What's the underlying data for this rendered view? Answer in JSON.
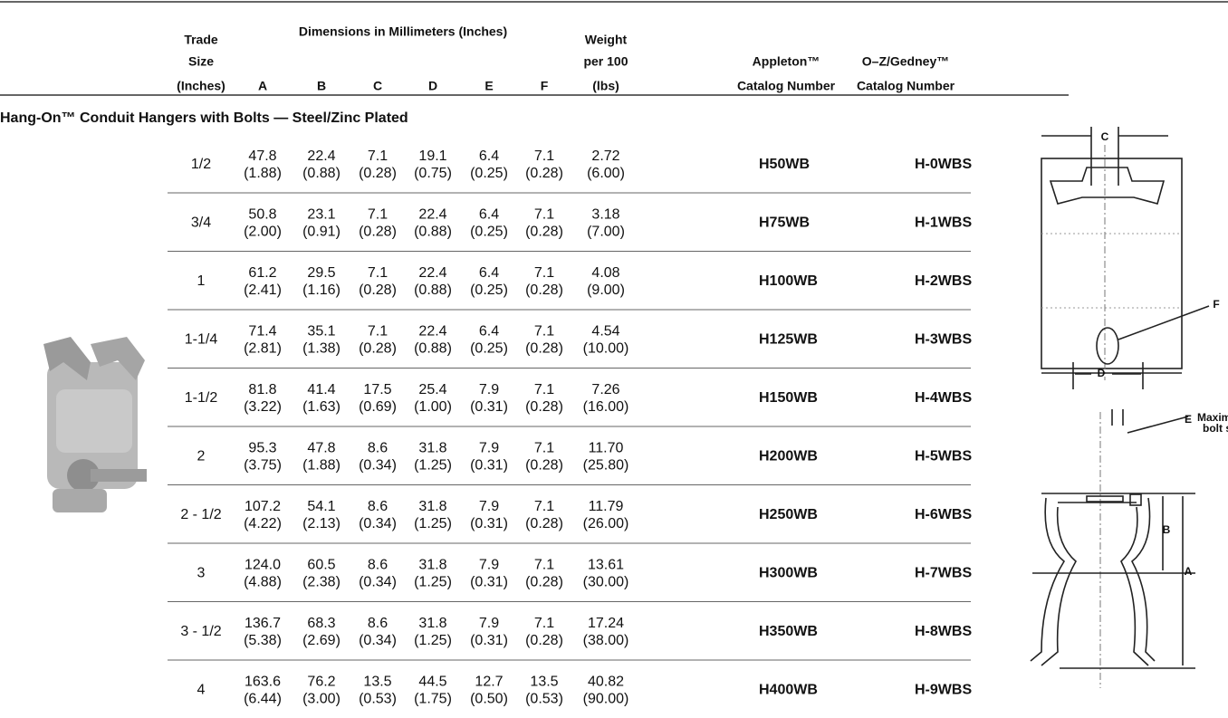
{
  "header": {
    "trade_size": [
      "Trade",
      "Size",
      "(Inches)"
    ],
    "dimensions_title": "Dimensions in Millimeters (Inches)",
    "dimension_columns": [
      "A",
      "B",
      "C",
      "D",
      "E",
      "F"
    ],
    "weight": [
      "Weight",
      "per 100",
      "(lbs)"
    ],
    "appleton": [
      "Appleton™",
      "Catalog Number"
    ],
    "ozgedney": [
      "O–Z/Gedney™",
      "Catalog Number"
    ]
  },
  "section_title": "Hang-On™ Conduit Hangers with Bolts — Steel/Zinc Plated",
  "rows": [
    {
      "size": "1/2",
      "dims": [
        [
          "47.8",
          "(1.88)"
        ],
        [
          "22.4",
          "(0.88)"
        ],
        [
          "7.1",
          "(0.28)"
        ],
        [
          "19.1",
          "(0.75)"
        ],
        [
          "6.4",
          "(0.25)"
        ],
        [
          "7.1",
          "(0.28)"
        ]
      ],
      "weight": [
        "2.72",
        "(6.00)"
      ],
      "appleton": "H50WB",
      "ozgedney": "H-0WBS"
    },
    {
      "size": "3/4",
      "dims": [
        [
          "50.8",
          "(2.00)"
        ],
        [
          "23.1",
          "(0.91)"
        ],
        [
          "7.1",
          "(0.28)"
        ],
        [
          "22.4",
          "(0.88)"
        ],
        [
          "6.4",
          "(0.25)"
        ],
        [
          "7.1",
          "(0.28)"
        ]
      ],
      "weight": [
        "3.18",
        "(7.00)"
      ],
      "appleton": "H75WB",
      "ozgedney": "H-1WBS"
    },
    {
      "size": "1",
      "dims": [
        [
          "61.2",
          "(2.41)"
        ],
        [
          "29.5",
          "(1.16)"
        ],
        [
          "7.1",
          "(0.28)"
        ],
        [
          "22.4",
          "(0.88)"
        ],
        [
          "6.4",
          "(0.25)"
        ],
        [
          "7.1",
          "(0.28)"
        ]
      ],
      "weight": [
        "4.08",
        "(9.00)"
      ],
      "appleton": "H100WB",
      "ozgedney": "H-2WBS"
    },
    {
      "size": "1-1/4",
      "dims": [
        [
          "71.4",
          "(2.81)"
        ],
        [
          "35.1",
          "(1.38)"
        ],
        [
          "7.1",
          "(0.28)"
        ],
        [
          "22.4",
          "(0.88)"
        ],
        [
          "6.4",
          "(0.25)"
        ],
        [
          "7.1",
          "(0.28)"
        ]
      ],
      "weight": [
        "4.54",
        "(10.00)"
      ],
      "appleton": "H125WB",
      "ozgedney": "H-3WBS"
    },
    {
      "size": "1-1/2",
      "dims": [
        [
          "81.8",
          "(3.22)"
        ],
        [
          "41.4",
          "(1.63)"
        ],
        [
          "17.5",
          "(0.69)"
        ],
        [
          "25.4",
          "(1.00)"
        ],
        [
          "7.9",
          "(0.31)"
        ],
        [
          "7.1",
          "(0.28)"
        ]
      ],
      "weight": [
        "7.26",
        "(16.00)"
      ],
      "appleton": "H150WB",
      "ozgedney": "H-4WBS"
    },
    {
      "size": "2",
      "dims": [
        [
          "95.3",
          "(3.75)"
        ],
        [
          "47.8",
          "(1.88)"
        ],
        [
          "8.6",
          "(0.34)"
        ],
        [
          "31.8",
          "(1.25)"
        ],
        [
          "7.9",
          "(0.31)"
        ],
        [
          "7.1",
          "(0.28)"
        ]
      ],
      "weight": [
        "11.70",
        "(25.80)"
      ],
      "appleton": "H200WB",
      "ozgedney": "H-5WBS"
    },
    {
      "size": "2 - 1/2",
      "dims": [
        [
          "107.2",
          "(4.22)"
        ],
        [
          "54.1",
          "(2.13)"
        ],
        [
          "8.6",
          "(0.34)"
        ],
        [
          "31.8",
          "(1.25)"
        ],
        [
          "7.9",
          "(0.31)"
        ],
        [
          "7.1",
          "(0.28)"
        ]
      ],
      "weight": [
        "11.79",
        "(26.00)"
      ],
      "appleton": "H250WB",
      "ozgedney": "H-6WBS"
    },
    {
      "size": "3",
      "dims": [
        [
          "124.0",
          "(4.88)"
        ],
        [
          "60.5",
          "(2.38)"
        ],
        [
          "8.6",
          "(0.34)"
        ],
        [
          "31.8",
          "(1.25)"
        ],
        [
          "7.9",
          "(0.31)"
        ],
        [
          "7.1",
          "(0.28)"
        ]
      ],
      "weight": [
        "13.61",
        "(30.00)"
      ],
      "appleton": "H300WB",
      "ozgedney": "H-7WBS"
    },
    {
      "size": "3 - 1/2",
      "dims": [
        [
          "136.7",
          "(5.38)"
        ],
        [
          "68.3",
          "(2.69)"
        ],
        [
          "8.6",
          "(0.34)"
        ],
        [
          "31.8",
          "(1.25)"
        ],
        [
          "7.9",
          "(0.31)"
        ],
        [
          "7.1",
          "(0.28)"
        ]
      ],
      "weight": [
        "17.24",
        "(38.00)"
      ],
      "appleton": "H350WB",
      "ozgedney": "H-8WBS"
    },
    {
      "size": "4",
      "dims": [
        [
          "163.6",
          "(6.44)"
        ],
        [
          "76.2",
          "(3.00)"
        ],
        [
          "13.5",
          "(0.53)"
        ],
        [
          "44.5",
          "(1.75)"
        ],
        [
          "12.7",
          "(0.50)"
        ],
        [
          "13.5",
          "(0.53)"
        ]
      ],
      "weight": [
        "40.82",
        "(90.00)"
      ],
      "appleton": "H400WB",
      "ozgedney": "H-9WBS"
    }
  ],
  "diagram_labels": {
    "c": "C",
    "f": "F",
    "d": "D",
    "e": "E",
    "max_bolt": [
      "Maximum",
      "bolt size"
    ],
    "b": "B",
    "a": "A"
  }
}
